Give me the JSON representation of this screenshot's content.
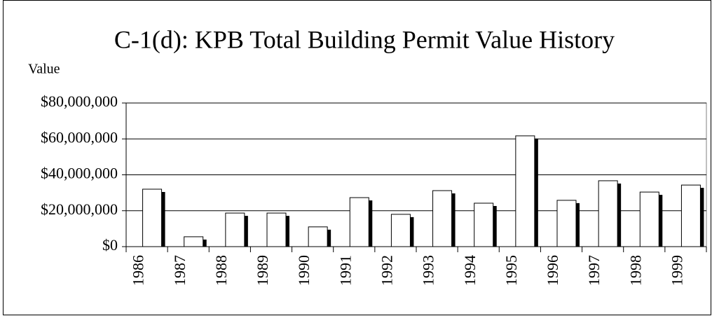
{
  "chart_data": {
    "type": "bar",
    "title": "C-1(d):  KPB Total Building Permit Value History",
    "y_label": "Value",
    "categories": [
      "1986",
      "1987",
      "1988",
      "1989",
      "1990",
      "1991",
      "1992",
      "1993",
      "1994",
      "1995",
      "1996",
      "1997",
      "1998",
      "1999"
    ],
    "values": [
      32000000,
      5500000,
      18700000,
      18700000,
      11000000,
      27300000,
      18000000,
      31200000,
      24200000,
      61700000,
      25800000,
      36700000,
      30400000,
      34300000
    ],
    "color": "#ffffff",
    "ylim": [
      0,
      80000000
    ],
    "yticks": [
      {
        "value": 0,
        "label": "$0"
      },
      {
        "value": 20000000,
        "label": "$20,000,000"
      },
      {
        "value": 40000000,
        "label": "$40,000,000"
      },
      {
        "value": 60000000,
        "label": "$60,000,000"
      },
      {
        "value": 80000000,
        "label": "$80,000,000"
      }
    ],
    "grid": true
  }
}
